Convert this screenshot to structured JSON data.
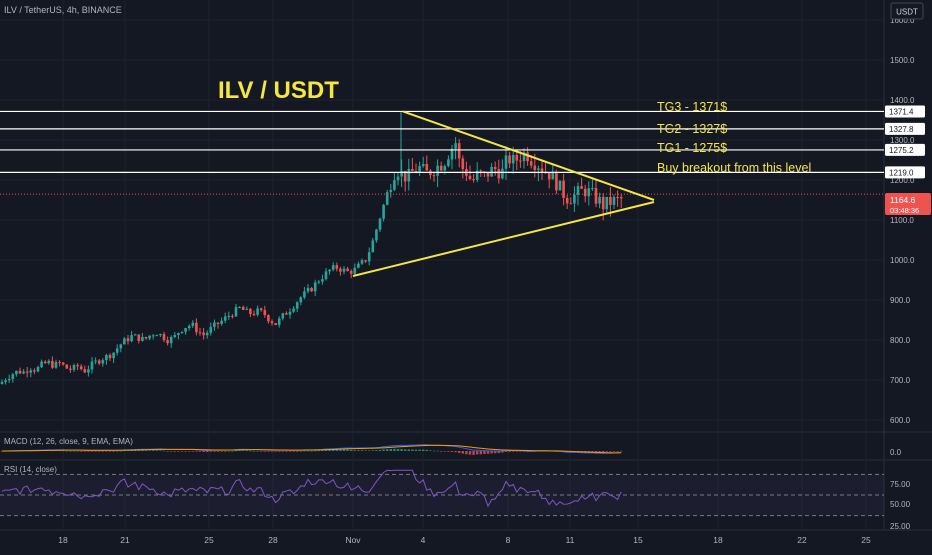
{
  "header": {
    "symbol_line": "ILV / TetherUS, 4h, BINANCE",
    "currency_button": "USDT"
  },
  "chart_data": {
    "type": "candlestick",
    "title": "ILV / USDT",
    "ylim": [
      570,
      1650
    ],
    "y_ticks": [
      600,
      700,
      800,
      900,
      1000,
      1100,
      1200,
      1300,
      1400,
      1500,
      1600
    ],
    "y_tick_labels": [
      "600.0",
      "700.0",
      "800.0",
      "900.0",
      "1000.0",
      "1100.0",
      "1200.0",
      "1300.0",
      "1400.0",
      "1500.0",
      "1600.0"
    ],
    "x_tick_labels": [
      "18",
      "21",
      "25",
      "28",
      "Nov",
      "4",
      "8",
      "11",
      "15",
      "18",
      "22",
      "25"
    ],
    "current_price": {
      "label": "1164.6",
      "countdown": "03:48:36",
      "value": 1164.6
    },
    "levels": [
      {
        "value": 1371.4,
        "label": "1371.4",
        "annotation": "TG3 - 1371$"
      },
      {
        "value": 1327.8,
        "label": "1327.8",
        "annotation": "TG2 - 1327$"
      },
      {
        "value": 1275.2,
        "label": "1275.2",
        "annotation": "TG1 - 1275$"
      },
      {
        "value": 1219.0,
        "label": "1219.0",
        "annotation": "Buy breakout from this level"
      }
    ],
    "price_path": [
      [
        0,
        690
      ],
      [
        6,
        705
      ],
      [
        12,
        715
      ],
      [
        18,
        722
      ],
      [
        24,
        720
      ],
      [
        30,
        732
      ],
      [
        36,
        725
      ],
      [
        42,
        738
      ],
      [
        48,
        744
      ],
      [
        54,
        736
      ],
      [
        60,
        742
      ],
      [
        66,
        730
      ],
      [
        72,
        726
      ],
      [
        78,
        735
      ],
      [
        84,
        722
      ],
      [
        90,
        734
      ],
      [
        96,
        745
      ],
      [
        102,
        754
      ],
      [
        108,
        760
      ],
      [
        114,
        770
      ],
      [
        120,
        788
      ],
      [
        126,
        800
      ],
      [
        132,
        810
      ],
      [
        138,
        806
      ],
      [
        144,
        800
      ],
      [
        150,
        812
      ],
      [
        156,
        820
      ],
      [
        162,
        810
      ],
      [
        168,
        800
      ],
      [
        174,
        806
      ],
      [
        180,
        825
      ],
      [
        186,
        834
      ],
      [
        192,
        838
      ],
      [
        198,
        822
      ],
      [
        204,
        812
      ],
      [
        210,
        826
      ],
      [
        216,
        838
      ],
      [
        222,
        848
      ],
      [
        228,
        860
      ],
      [
        234,
        870
      ],
      [
        240,
        880
      ],
      [
        246,
        870
      ],
      [
        252,
        866
      ],
      [
        258,
        872
      ],
      [
        264,
        866
      ],
      [
        270,
        850
      ],
      [
        276,
        840
      ],
      [
        282,
        858
      ],
      [
        288,
        872
      ],
      [
        294,
        888
      ],
      [
        300,
        905
      ],
      [
        306,
        918
      ],
      [
        312,
        930
      ],
      [
        318,
        948
      ],
      [
        324,
        962
      ],
      [
        330,
        975
      ],
      [
        336,
        982
      ],
      [
        342,
        976
      ],
      [
        348,
        970
      ],
      [
        354,
        974
      ],
      [
        360,
        988
      ],
      [
        366,
        1002
      ],
      [
        372,
        1040
      ],
      [
        378,
        1090
      ],
      [
        384,
        1140
      ],
      [
        390,
        1190
      ],
      [
        396,
        1230
      ],
      [
        402,
        1215
      ],
      [
        408,
        1205
      ],
      [
        414,
        1225
      ],
      [
        420,
        1230
      ],
      [
        426,
        1215
      ],
      [
        432,
        1225
      ],
      [
        438,
        1235
      ],
      [
        444,
        1245
      ],
      [
        450,
        1275
      ],
      [
        456,
        1295
      ],
      [
        460,
        1235
      ],
      [
        466,
        1222
      ],
      [
        472,
        1195
      ],
      [
        478,
        1215
      ],
      [
        484,
        1208
      ],
      [
        490,
        1222
      ],
      [
        496,
        1228
      ],
      [
        502,
        1218
      ],
      [
        508,
        1255
      ],
      [
        514,
        1245
      ],
      [
        520,
        1260
      ],
      [
        526,
        1268
      ],
      [
        532,
        1250
      ],
      [
        538,
        1240
      ],
      [
        544,
        1225
      ],
      [
        550,
        1215
      ],
      [
        556,
        1195
      ],
      [
        562,
        1170
      ],
      [
        568,
        1155
      ],
      [
        574,
        1160
      ],
      [
        580,
        1170
      ],
      [
        586,
        1175
      ],
      [
        592,
        1162
      ],
      [
        598,
        1150
      ],
      [
        604,
        1135
      ],
      [
        610,
        1145
      ],
      [
        616,
        1148
      ],
      [
        622,
        1152
      ],
      [
        626,
        1164.6
      ]
    ],
    "triangle": {
      "apex_top": [
        403,
        1371.4
      ],
      "apex_bottom": [
        353,
        960
      ],
      "tip": [
        654,
        1150
      ]
    },
    "macd": {
      "label": "MACD (12, 26, close, 9, EMA, EMA)",
      "tick": "0.0"
    },
    "rsi": {
      "label": "RSI (14, close)",
      "ticks": [
        "75.00",
        "50.00",
        "25.00"
      ],
      "levels": [
        75,
        50,
        25
      ]
    }
  },
  "colors": {
    "up": "#26a69a",
    "down": "#ef5350",
    "pattern": "#f5e642",
    "level": "#ffffff",
    "price": "#ef5350",
    "macd": "#2962ff",
    "signal": "#ff9800",
    "rsi": "#7e57c2"
  }
}
